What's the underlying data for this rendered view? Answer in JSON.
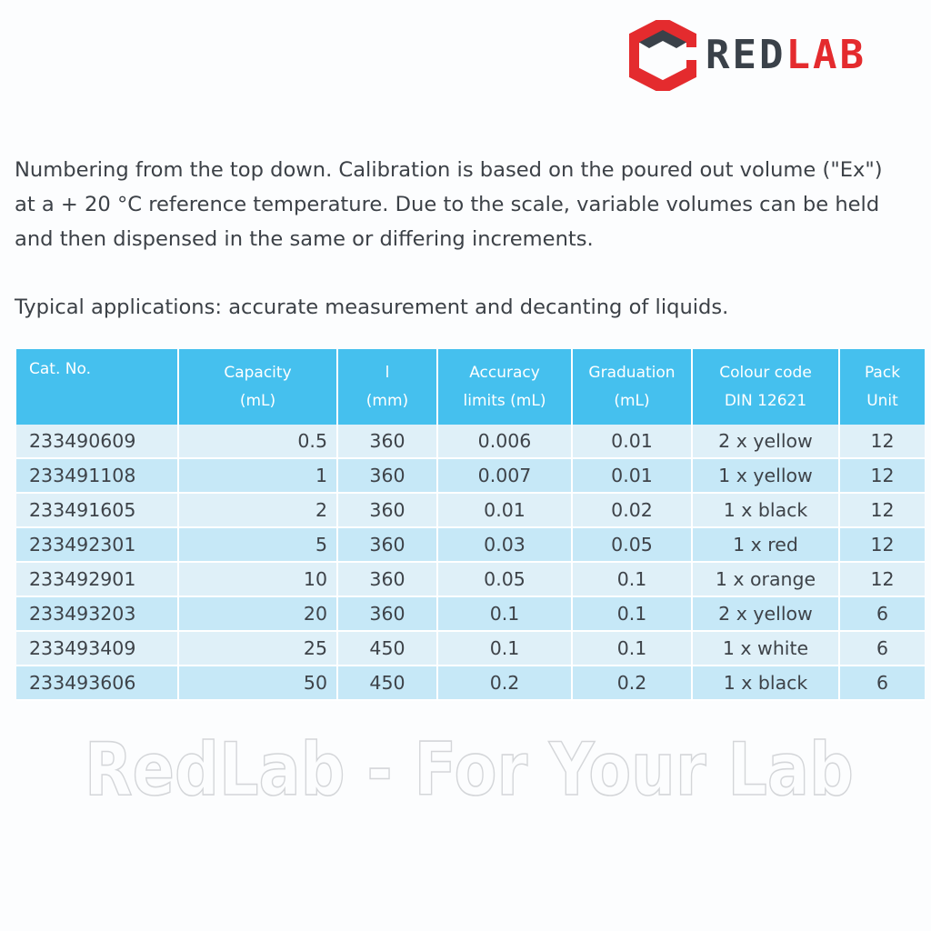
{
  "brand": {
    "logo_red": "RED",
    "logo_lab": "LAB",
    "logo_icon": "hexagon-logo-icon",
    "colors": {
      "dark": "#3a4149",
      "accent": "#e42b2e"
    }
  },
  "intro": {
    "line1": "Numbering from the top down. Calibration is based on the poured out volume (\"Ex\")",
    "line2": "at a + 20 °C reference temperature. Due to the scale, variable volumes can be held",
    "line3": "and then dispensed in the same or differing increments.",
    "applications": "Typical applications: accurate measurement and decanting of liquids."
  },
  "table": {
    "header_color": "#45c0ee",
    "columns": [
      {
        "l1": "Cat. No.",
        "l2": ""
      },
      {
        "l1": "Capacity",
        "l2": "(mL)"
      },
      {
        "l1": "l",
        "l2": "(mm)"
      },
      {
        "l1": "Accuracy",
        "l2": "limits (mL)"
      },
      {
        "l1": "Graduation",
        "l2": "(mL)"
      },
      {
        "l1": "Colour code",
        "l2": "DIN 12621"
      },
      {
        "l1": "Pack",
        "l2": "Unit"
      }
    ],
    "rows": [
      {
        "cat": "233490609",
        "capacity": "0.5",
        "length": "360",
        "accuracy": "0.006",
        "graduation": "0.01",
        "colour": "2 x yellow",
        "pack": "12"
      },
      {
        "cat": "233491108",
        "capacity": "1",
        "length": "360",
        "accuracy": "0.007",
        "graduation": "0.01",
        "colour": "1 x yellow",
        "pack": "12"
      },
      {
        "cat": "233491605",
        "capacity": "2",
        "length": "360",
        "accuracy": "0.01",
        "graduation": "0.02",
        "colour": "1 x black",
        "pack": "12"
      },
      {
        "cat": "233492301",
        "capacity": "5",
        "length": "360",
        "accuracy": "0.03",
        "graduation": "0.05",
        "colour": "1 x red",
        "pack": "12"
      },
      {
        "cat": "233492901",
        "capacity": "10",
        "length": "360",
        "accuracy": "0.05",
        "graduation": "0.1",
        "colour": "1 x orange",
        "pack": "12"
      },
      {
        "cat": "233493203",
        "capacity": "20",
        "length": "360",
        "accuracy": "0.1",
        "graduation": "0.1",
        "colour": "2 x yellow",
        "pack": "6"
      },
      {
        "cat": "233493409",
        "capacity": "25",
        "length": "450",
        "accuracy": "0.1",
        "graduation": "0.1",
        "colour": "1 x white",
        "pack": "6"
      },
      {
        "cat": "233493606",
        "capacity": "50",
        "length": "450",
        "accuracy": "0.2",
        "graduation": "0.2",
        "colour": "1 x black",
        "pack": "6"
      }
    ]
  },
  "watermark": {
    "text": "RedLab - For Your Lab"
  }
}
